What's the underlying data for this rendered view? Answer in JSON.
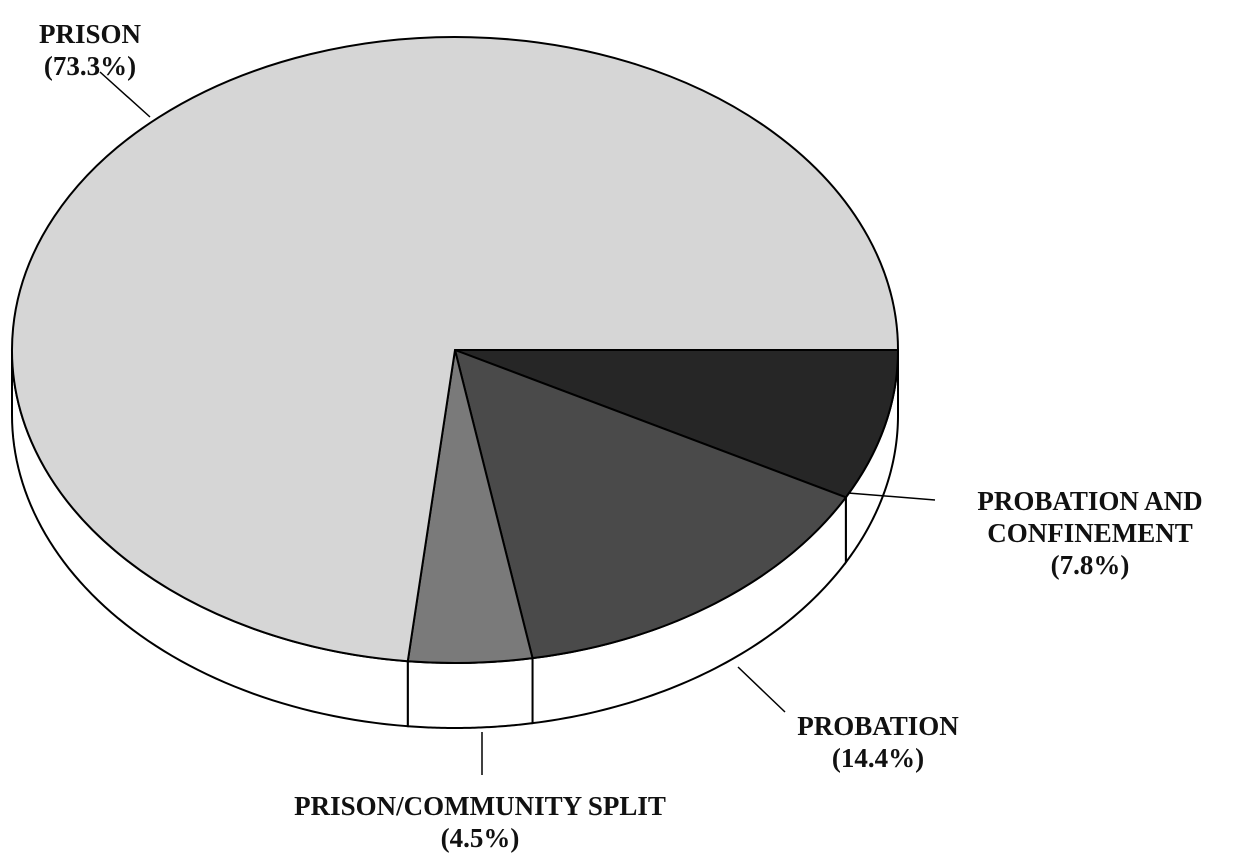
{
  "chart_data": {
    "type": "pie",
    "categories": [
      "PROBATION AND CONFINEMENT",
      "PROBATION",
      "PRISON/COMMUNITY SPLIT",
      "PRISON"
    ],
    "values": [
      7.8,
      14.4,
      4.5,
      73.3
    ],
    "value_labels": [
      "(7.8%)",
      "(14.4%)",
      "(4.5%)",
      "(73.3%)"
    ],
    "colors": [
      "#262626",
      "#4a4a4a",
      "#7a7a7a",
      "#d6d6d6"
    ]
  }
}
